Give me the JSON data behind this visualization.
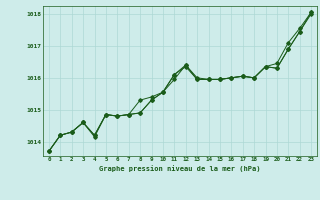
{
  "title": "Graphe pression niveau de la mer (hPa)",
  "bg_color": "#ceecea",
  "grid_color": "#aed8d5",
  "line_color": "#1a5c1a",
  "xlim": [
    -0.5,
    23.5
  ],
  "ylim": [
    1013.55,
    1018.25
  ],
  "yticks": [
    1014,
    1015,
    1016,
    1017,
    1018
  ],
  "xticks": [
    0,
    1,
    2,
    3,
    4,
    5,
    6,
    7,
    8,
    9,
    10,
    11,
    12,
    13,
    14,
    15,
    16,
    17,
    18,
    19,
    20,
    21,
    22,
    23
  ],
  "series1": [
    1013.7,
    1014.2,
    1014.3,
    1014.6,
    1014.2,
    1014.85,
    1014.8,
    1014.85,
    1014.9,
    1015.3,
    1015.55,
    1016.1,
    1016.4,
    1016.0,
    1015.95,
    1015.95,
    1016.0,
    1016.05,
    1016.0,
    1016.35,
    1016.3,
    1016.9,
    1017.45,
    1018.05
  ],
  "series2": [
    1013.7,
    1014.2,
    1014.3,
    1014.6,
    1014.2,
    1014.85,
    1014.8,
    1014.85,
    1014.9,
    1015.3,
    1015.55,
    1016.1,
    1016.35,
    1015.95,
    1015.95,
    1015.95,
    1016.0,
    1016.05,
    1016.0,
    1016.35,
    1016.3,
    1016.9,
    1017.45,
    1018.0
  ],
  "series3": [
    1013.7,
    1014.2,
    1014.3,
    1014.6,
    1014.15,
    1014.85,
    1014.8,
    1014.85,
    1015.3,
    1015.4,
    1015.55,
    1015.95,
    1016.4,
    1015.95,
    1015.95,
    1015.95,
    1016.0,
    1016.05,
    1016.0,
    1016.35,
    1016.45,
    1017.1,
    1017.55,
    1018.05
  ]
}
